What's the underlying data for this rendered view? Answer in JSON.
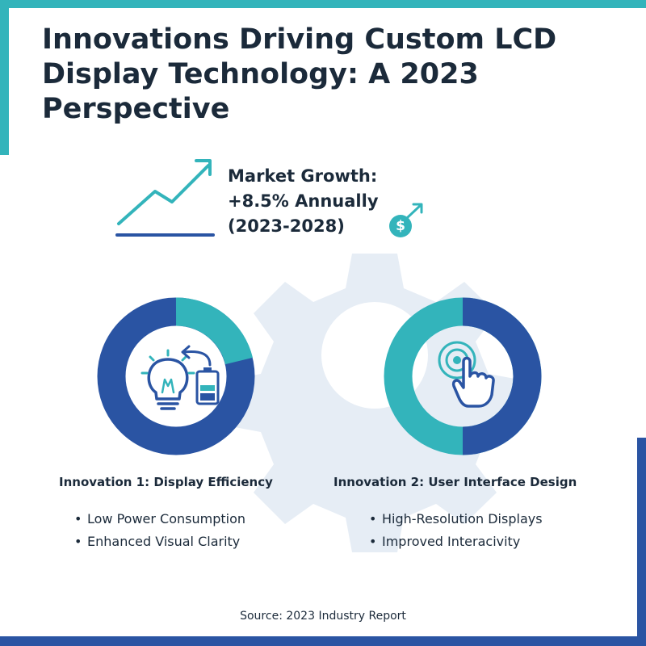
{
  "title": "Innovations Driving Custom LCD Display Technology: A 2023 Perspective",
  "market_growth": {
    "lines": [
      "Market Growth:",
      "+8.5% Annually",
      "(2023-2028)"
    ],
    "dollar_symbol": "$"
  },
  "innovations": [
    {
      "title": "Innovation 1: Display Efficiency",
      "bullets": [
        "Low Power Consumption",
        "Enhanced Visual Clarity"
      ],
      "icons": [
        "lightbulb-icon",
        "battery-icon"
      ]
    },
    {
      "title": "Innovation 2: User Interface Design",
      "bullets": [
        "High-Resolution Displays",
        "Improved Interacivity"
      ],
      "icons": [
        "touch-hand-icon"
      ]
    }
  ],
  "source": "Source: 2023 Industry Report",
  "colors": {
    "teal": "#33b4bb",
    "navy": "#2a54a3",
    "gear": "#e6edf5",
    "text": "#1b2a3a"
  }
}
